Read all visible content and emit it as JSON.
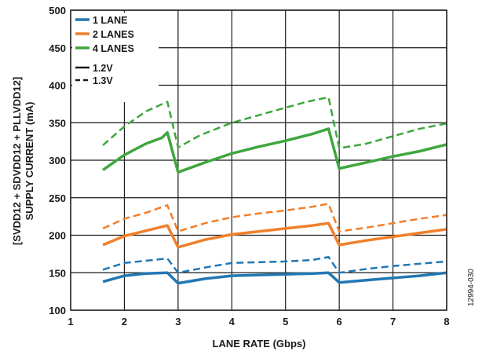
{
  "chart_data": {
    "type": "line",
    "xlabel": "LANE RATE (Gbps)",
    "ylabel_lines": [
      "[SVDD12 + SDVDD12 + PLLVDD12]",
      "SUPPLY CURRENT (mA)"
    ],
    "xlim": [
      1,
      8
    ],
    "ylim": [
      100,
      500
    ],
    "x_ticks": [
      1,
      2,
      3,
      4,
      5,
      6,
      7,
      8
    ],
    "y_ticks": [
      100,
      150,
      200,
      250,
      300,
      350,
      400,
      450,
      500
    ],
    "grid": true,
    "legend_placement": "top-left",
    "legend": {
      "colors": [
        {
          "label": "1 LANE",
          "color": "#2277b4"
        },
        {
          "label": "2 LANES",
          "color": "#f07f2a"
        },
        {
          "label": "4 LANES",
          "color": "#3ea63e"
        }
      ],
      "styles": [
        {
          "label": "1.2V",
          "dash": "solid"
        },
        {
          "label": "1.3V",
          "dash": "dashed"
        }
      ]
    },
    "series": [
      {
        "name": "4 LANES 1.3V",
        "color": "#3ea63e",
        "dash": "dashed",
        "x": [
          1.6,
          2.0,
          2.4,
          2.8,
          3.0,
          3.4,
          4.0,
          4.6,
          5.0,
          5.4,
          5.8,
          6.0,
          6.5,
          7.0,
          7.5,
          8.0
        ],
        "y": [
          320,
          345,
          365,
          378,
          317,
          333,
          350,
          362,
          370,
          378,
          384,
          316,
          322,
          332,
          342,
          349
        ]
      },
      {
        "name": "4 LANES 1.2V",
        "color": "#3ea63e",
        "dash": "solid",
        "x": [
          1.6,
          2.0,
          2.4,
          2.7,
          2.8,
          3.0,
          3.5,
          4.0,
          4.5,
          5.0,
          5.5,
          5.8,
          6.0,
          6.5,
          7.0,
          7.5,
          8.0
        ],
        "y": [
          287,
          307,
          322,
          330,
          337,
          284,
          297,
          309,
          318,
          326,
          335,
          342,
          289,
          297,
          305,
          312,
          321
        ]
      },
      {
        "name": "2 LANES 1.3V",
        "color": "#f07f2a",
        "dash": "dashed",
        "x": [
          1.6,
          2.0,
          2.4,
          2.8,
          3.0,
          3.5,
          4.0,
          4.5,
          5.0,
          5.5,
          5.8,
          6.0,
          6.5,
          7.0,
          7.5,
          8.0
        ],
        "y": [
          209,
          222,
          230,
          240,
          205,
          216,
          224,
          229,
          233,
          238,
          242,
          205,
          210,
          216,
          222,
          227
        ]
      },
      {
        "name": "2 LANES 1.2V",
        "color": "#f07f2a",
        "dash": "solid",
        "x": [
          1.6,
          2.0,
          2.4,
          2.8,
          3.0,
          3.5,
          4.0,
          4.5,
          5.0,
          5.5,
          5.8,
          6.0,
          6.5,
          7.0,
          7.5,
          8.0
        ],
        "y": [
          187,
          199,
          206,
          213,
          184,
          194,
          201,
          205,
          209,
          213,
          216,
          187,
          193,
          198,
          203,
          208
        ]
      },
      {
        "name": "1 LANE 1.3V",
        "color": "#2277b4",
        "dash": "dashed",
        "x": [
          1.6,
          2.0,
          2.4,
          2.8,
          3.0,
          3.5,
          4.0,
          4.5,
          5.0,
          5.5,
          5.8,
          6.0,
          6.5,
          7.0,
          7.5,
          8.0
        ],
        "y": [
          154,
          163,
          166,
          169,
          150,
          157,
          163,
          164,
          165,
          167,
          171,
          150,
          155,
          159,
          162,
          165
        ]
      },
      {
        "name": "1 LANE 1.2V",
        "color": "#2277b4",
        "dash": "solid",
        "x": [
          1.6,
          2.0,
          2.4,
          2.8,
          3.0,
          3.5,
          4.0,
          4.5,
          5.0,
          5.5,
          5.8,
          6.0,
          6.5,
          7.0,
          7.5,
          8.0
        ],
        "y": [
          138,
          146,
          149,
          150,
          136,
          142,
          146,
          147,
          148,
          149,
          150,
          137,
          140,
          143,
          146,
          150
        ]
      }
    ]
  },
  "figure_id": "12994-030"
}
